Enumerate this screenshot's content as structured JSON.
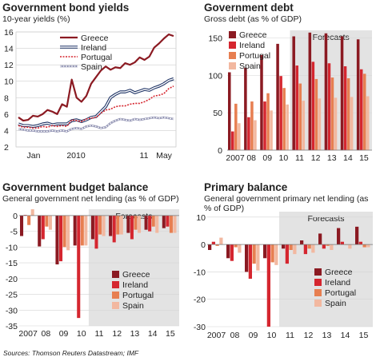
{
  "colors": {
    "greece": "#8b1a22",
    "ireland": "#d5262f",
    "portugal": "#e77f51",
    "spain": "#f2b8a0",
    "forecast_bg": "#e3e3e3"
  },
  "source": "Sources: Thomson Reuters Datastream; IMF",
  "chart_data": [
    {
      "type": "line",
      "title": "Government bond yields",
      "subtitle": "10-year yields (%)",
      "ylim": [
        2,
        16
      ],
      "yticks": [
        "2",
        "4",
        "6",
        "8",
        "10",
        "12",
        "14",
        "16"
      ],
      "xlabels": [
        "Jan",
        "2010",
        "11",
        "May"
      ],
      "legend": [
        "Greece",
        "Ireland",
        "Portugal",
        "Spain"
      ],
      "series": [
        {
          "name": "Greece",
          "values": [
            5.6,
            5.2,
            5.3,
            5.8,
            5.7,
            6.0,
            6.5,
            6.3,
            6.0,
            7.2,
            6.9,
            10.2,
            8.0,
            7.5,
            8.2,
            9.7,
            10.5,
            11.3,
            11.8,
            11.4,
            11.7,
            11.6,
            12.2,
            12.0,
            12.3,
            12.9,
            12.6,
            13.0,
            14.1,
            14.6,
            15.2,
            15.7,
            15.5
          ]
        },
        {
          "name": "Ireland",
          "values": [
            4.8,
            4.6,
            4.6,
            4.5,
            4.6,
            4.8,
            4.9,
            4.7,
            4.8,
            4.8,
            4.8,
            5.2,
            5.3,
            5.1,
            5.3,
            5.6,
            5.7,
            6.3,
            6.9,
            8.0,
            8.4,
            8.7,
            8.7,
            8.9,
            8.6,
            8.8,
            9.0,
            8.9,
            9.2,
            9.4,
            9.7,
            10.1,
            10.3
          ]
        },
        {
          "name": "Portugal",
          "values": [
            4.6,
            4.4,
            4.4,
            4.3,
            4.3,
            4.5,
            4.4,
            4.6,
            4.5,
            4.6,
            4.5,
            5.3,
            5.2,
            5.1,
            5.4,
            5.5,
            5.6,
            6.1,
            6.5,
            6.6,
            6.9,
            7.0,
            7.0,
            7.2,
            7.3,
            7.3,
            7.5,
            7.8,
            8.2,
            8.3,
            8.5,
            9.1,
            9.4
          ]
        },
        {
          "name": "Spain",
          "values": [
            4.2,
            4.1,
            4.0,
            4.0,
            3.9,
            3.9,
            3.9,
            4.0,
            3.9,
            4.0,
            3.9,
            4.2,
            4.3,
            4.2,
            4.5,
            4.6,
            4.5,
            4.3,
            4.4,
            4.9,
            5.2,
            5.4,
            5.3,
            5.2,
            5.4,
            5.3,
            5.4,
            5.5,
            5.6,
            5.5,
            5.6,
            5.5,
            5.4
          ]
        }
      ]
    },
    {
      "type": "bar",
      "title": "Government debt",
      "subtitle": "Gross debt (as % of GDP)",
      "ylim": [
        0,
        160
      ],
      "yticks": [
        "0",
        "50",
        "100",
        "150"
      ],
      "categories": [
        "2007",
        "08",
        "09",
        "10",
        "11",
        "12",
        "13",
        "14",
        "15"
      ],
      "forecast_label": "Forecasts",
      "forecast_from": "11",
      "legend": [
        "Greece",
        "Ireland",
        "Portugal",
        "Spain"
      ],
      "series": [
        {
          "name": "Greece",
          "values": [
            104,
            110,
            127,
            142,
            152,
            157,
            156,
            152,
            148
          ]
        },
        {
          "name": "Ireland",
          "values": [
            25,
            44,
            65,
            99,
            113,
            118,
            116,
            112,
            108
          ]
        },
        {
          "name": "Portugal",
          "values": [
            62,
            65,
            76,
            83,
            89,
            95,
            97,
            96,
            102
          ]
        },
        {
          "name": "Spain",
          "values": [
            36,
            40,
            53,
            61,
            66,
            69,
            70,
            71,
            72
          ]
        }
      ]
    },
    {
      "type": "bar",
      "title": "Government budget balance",
      "subtitle": "General government net lending (as % of GDP)",
      "ylim": [
        -35,
        2
      ],
      "yticks": [
        "0",
        "-5",
        "-10",
        "-15",
        "-20",
        "-25",
        "-30",
        "-35"
      ],
      "categories": [
        "2007",
        "08",
        "09",
        "10",
        "11",
        "12",
        "13",
        "14",
        "15"
      ],
      "forecast_label": "Forecasts",
      "forecast_from": "11",
      "legend": [
        "Greece",
        "Ireland",
        "Portugal",
        "Spain"
      ],
      "series": [
        {
          "name": "Greece",
          "values": [
            -6.5,
            -9.8,
            -15.5,
            -9.5,
            -7.5,
            -6.5,
            -5.5,
            -4.5,
            -4.0
          ]
        },
        {
          "name": "Ireland",
          "values": [
            0.2,
            -7.5,
            -14.5,
            -32.5,
            -10.5,
            -8.5,
            -7.5,
            -5.0,
            -3.5
          ]
        },
        {
          "name": "Portugal",
          "values": [
            -3.0,
            -3.5,
            -10.0,
            -9.5,
            -6.0,
            -6.0,
            -4.5,
            -3.5,
            -5.5
          ]
        },
        {
          "name": "Spain",
          "values": [
            2.0,
            -4.5,
            -11.0,
            -9.5,
            -6.5,
            -6.0,
            -5.5,
            -5.5,
            -5.5
          ]
        }
      ]
    },
    {
      "type": "bar",
      "title": "Primary balance",
      "subtitle": "General government primary net lending (as % of GDP)",
      "ylim": [
        -30,
        12
      ],
      "yticks": [
        "10",
        "0",
        "-10",
        "-20",
        "-30"
      ],
      "categories": [
        "2007",
        "08",
        "09",
        "10",
        "11",
        "12",
        "13",
        "14",
        "15"
      ],
      "forecast_label": "Forecasts",
      "forecast_from": "11",
      "legend": [
        "Greece",
        "Ireland",
        "Portugal",
        "Spain"
      ],
      "series": [
        {
          "name": "Greece",
          "values": [
            -2.0,
            -5.0,
            -10.0,
            -5.0,
            -1.5,
            1.5,
            4.0,
            6.0,
            6.5
          ]
        },
        {
          "name": "Ireland",
          "values": [
            1.0,
            -6.0,
            -12.5,
            -30.0,
            -7.0,
            -3.5,
            -1.5,
            1.0,
            1.0
          ]
        },
        {
          "name": "Portugal",
          "values": [
            -0.5,
            -1.0,
            -7.0,
            -6.5,
            -2.0,
            -1.5,
            -0.5,
            0.0,
            -1.0
          ]
        },
        {
          "name": "Spain",
          "values": [
            2.5,
            -3.0,
            -9.5,
            -7.5,
            -3.5,
            -3.0,
            -2.0,
            -1.5,
            -1.0
          ]
        }
      ]
    }
  ]
}
